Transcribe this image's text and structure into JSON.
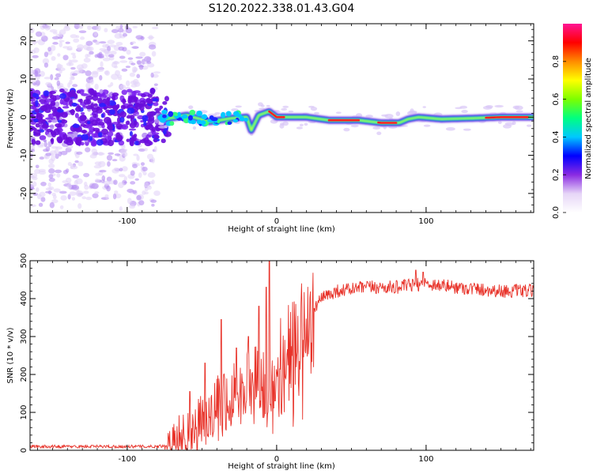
{
  "title": "S120.2022.338.01.43.G04",
  "colors": {
    "snr_line": "#e8332a",
    "axis": "#000000"
  },
  "chart_data": [
    {
      "type": "heatmap",
      "name": "spectrogram",
      "xlabel": "Height of straight line (km)",
      "ylabel": "Frequency (Hz)",
      "xlim": [
        -165,
        172
      ],
      "ylim": [
        -25,
        24.5
      ],
      "xticks": [
        -100,
        0,
        100
      ],
      "yticks": [
        -20,
        -10,
        0,
        10,
        20
      ],
      "colorbar": {
        "label": "Normalized spectral amplitude",
        "range": [
          0,
          1
        ],
        "ticks": [
          0.0,
          0.2,
          0.4,
          0.6,
          0.8
        ],
        "tick_labels": [
          "0.0",
          "0.2",
          "0.4",
          "0.6",
          "0.8"
        ],
        "colormap": [
          "#ffffff",
          "#e6d5f7",
          "#8a2be2",
          "#0000ff",
          "#00c8ff",
          "#00ff80",
          "#7cff00",
          "#ffff00",
          "#ff8c00",
          "#ff0000",
          "#ff1493"
        ]
      },
      "ridge": [
        {
          "x": -75,
          "y": -0.5
        },
        {
          "x": -60,
          "y": 0.5
        },
        {
          "x": -45,
          "y": -1.2
        },
        {
          "x": -30,
          "y": -0.3
        },
        {
          "x": -20,
          "y": 0
        },
        {
          "x": -17,
          "y": -3.5
        },
        {
          "x": -12,
          "y": 0.5
        },
        {
          "x": -5,
          "y": 1.5
        },
        {
          "x": 0,
          "y": 0
        },
        {
          "x": 20,
          "y": 0
        },
        {
          "x": 35,
          "y": -0.8
        },
        {
          "x": 55,
          "y": -0.8
        },
        {
          "x": 70,
          "y": -1.5
        },
        {
          "x": 82,
          "y": -1.5
        },
        {
          "x": 88,
          "y": -0.5
        },
        {
          "x": 95,
          "y": 0
        },
        {
          "x": 110,
          "y": -0.5
        },
        {
          "x": 130,
          "y": -0.3
        },
        {
          "x": 150,
          "y": 0
        },
        {
          "x": 172,
          "y": 0
        }
      ],
      "noise_region_x": [
        -165,
        -80
      ]
    },
    {
      "type": "line",
      "name": "snr",
      "xlabel": "Height of straight line (km)",
      "ylabel": "SNR (10 * v/v)",
      "xlim": [
        -165,
        172
      ],
      "ylim": [
        0,
        500
      ],
      "xticks": [
        -100,
        0,
        100
      ],
      "yticks": [
        0,
        100,
        200,
        300,
        400,
        500
      ],
      "trend": [
        {
          "x": -165,
          "y": 10
        },
        {
          "x": -80,
          "y": 10
        },
        {
          "x": -70,
          "y": 15
        },
        {
          "x": -60,
          "y": 40
        },
        {
          "x": -50,
          "y": 80
        },
        {
          "x": -40,
          "y": 120
        },
        {
          "x": -30,
          "y": 150
        },
        {
          "x": -20,
          "y": 170
        },
        {
          "x": -10,
          "y": 190
        },
        {
          "x": -3,
          "y": 200
        },
        {
          "x": 0,
          "y": 230
        },
        {
          "x": 10,
          "y": 290
        },
        {
          "x": 20,
          "y": 350
        },
        {
          "x": 30,
          "y": 400
        },
        {
          "x": 40,
          "y": 420
        },
        {
          "x": 60,
          "y": 430
        },
        {
          "x": 80,
          "y": 430
        },
        {
          "x": 100,
          "y": 440
        },
        {
          "x": 120,
          "y": 430
        },
        {
          "x": 150,
          "y": 420
        },
        {
          "x": 172,
          "y": 420
        }
      ],
      "peaks": [
        {
          "x": -58,
          "y": 155
        },
        {
          "x": -48,
          "y": 230
        },
        {
          "x": -37,
          "y": 345
        },
        {
          "x": -27,
          "y": 270
        },
        {
          "x": -19,
          "y": 300
        },
        {
          "x": -12,
          "y": 380
        },
        {
          "x": -7,
          "y": 430
        },
        {
          "x": -5,
          "y": 500
        },
        {
          "x": -1,
          "y": 130
        },
        {
          "x": 93,
          "y": 475
        },
        {
          "x": 98,
          "y": 470
        }
      ]
    }
  ]
}
